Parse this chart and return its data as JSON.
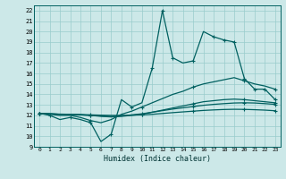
{
  "xlabel": "Humidex (Indice chaleur)",
  "bg_color": "#cce8e8",
  "line_color": "#006060",
  "grid_color": "#99cccc",
  "xlim": [
    -0.5,
    23.5
  ],
  "ylim": [
    9,
    22.5
  ],
  "xticks": [
    0,
    1,
    2,
    3,
    4,
    5,
    6,
    7,
    8,
    9,
    10,
    11,
    12,
    13,
    14,
    15,
    16,
    17,
    18,
    19,
    20,
    21,
    22,
    23
  ],
  "yticks": [
    9,
    10,
    11,
    12,
    13,
    14,
    15,
    16,
    17,
    18,
    19,
    20,
    21,
    22
  ],
  "series": [
    [
      12.2,
      12.0,
      11.6,
      11.8,
      11.6,
      11.3,
      9.5,
      10.2,
      13.5,
      12.8,
      13.2,
      16.5,
      22.0,
      17.5,
      17.0,
      17.2,
      20.0,
      19.5,
      19.2,
      19.0,
      15.5,
      14.5,
      14.5,
      13.5
    ],
    [
      12.2,
      12.1,
      12.0,
      12.0,
      11.8,
      11.5,
      11.3,
      11.6,
      12.1,
      12.4,
      12.8,
      13.2,
      13.6,
      14.0,
      14.3,
      14.7,
      15.0,
      15.2,
      15.4,
      15.6,
      15.3,
      15.0,
      14.8,
      14.5
    ],
    [
      12.2,
      12.15,
      12.1,
      12.1,
      12.05,
      12.0,
      11.9,
      11.85,
      11.9,
      12.0,
      12.1,
      12.3,
      12.5,
      12.7,
      12.9,
      13.1,
      13.3,
      13.4,
      13.5,
      13.55,
      13.5,
      13.4,
      13.3,
      13.2
    ],
    [
      12.2,
      12.15,
      12.1,
      12.1,
      12.05,
      12.0,
      11.95,
      11.9,
      11.95,
      12.05,
      12.15,
      12.3,
      12.45,
      12.6,
      12.72,
      12.84,
      12.96,
      13.05,
      13.12,
      13.18,
      13.2,
      13.18,
      13.12,
      13.05
    ],
    [
      12.2,
      12.15,
      12.12,
      12.1,
      12.08,
      12.05,
      12.02,
      12.0,
      12.0,
      12.02,
      12.05,
      12.1,
      12.18,
      12.26,
      12.33,
      12.4,
      12.47,
      12.52,
      12.56,
      12.58,
      12.57,
      12.54,
      12.5,
      12.44
    ]
  ],
  "marker_indices": [
    [
      0,
      1,
      3,
      5,
      7,
      9,
      11,
      12,
      13,
      15,
      17,
      18,
      19,
      20,
      21,
      22,
      23
    ],
    [
      0,
      5,
      10,
      15,
      20,
      23
    ],
    [
      0,
      5,
      10,
      15,
      20,
      23
    ],
    [
      0,
      5,
      10,
      15,
      20,
      23
    ],
    [
      0,
      5,
      10,
      15,
      20,
      23
    ]
  ],
  "linewidths": [
    0.9,
    0.9,
    0.9,
    0.9,
    0.9
  ]
}
